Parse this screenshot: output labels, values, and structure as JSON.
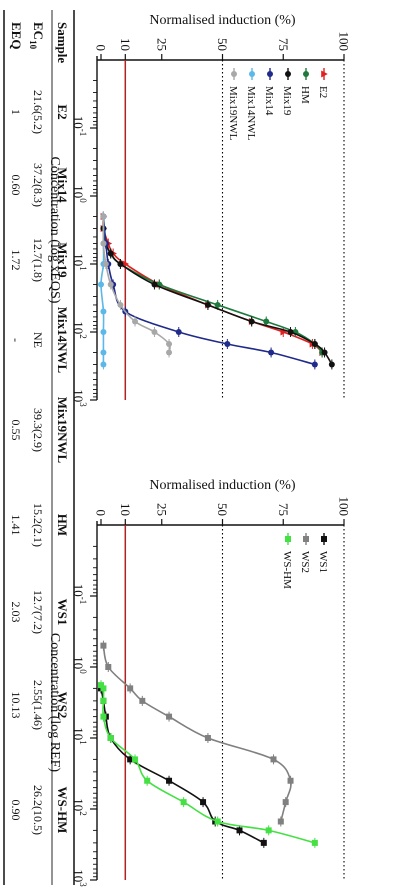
{
  "chart_data": [
    {
      "type": "scatter",
      "title": "",
      "xlabel": "Concentration (log xEQS)",
      "ylabel": "Normalised induction (%)",
      "xscale": "log",
      "xlim": [
        0.01,
        1000
      ],
      "ylim": [
        0,
        100
      ],
      "xtick_labels": [
        {
          "base": "10",
          "exp": "-1"
        },
        {
          "base": "10",
          "exp": "0"
        },
        {
          "base": "10",
          "exp": "1"
        },
        {
          "base": "10",
          "exp": "2"
        },
        {
          "base": "10",
          "exp": "3"
        }
      ],
      "yticks": [
        0,
        10,
        25,
        50,
        75,
        100
      ],
      "ytick_labels": [
        "0",
        "10",
        "25",
        "50",
        "75",
        "100"
      ],
      "reference_lines": [
        {
          "y": 100,
          "style": "dotted",
          "color": "#000000"
        },
        {
          "y": 50,
          "style": "dotted",
          "color": "#000000"
        },
        {
          "y": 10,
          "style": "solid",
          "color": "#b22222"
        }
      ],
      "legend_position": "top-left",
      "series": [
        {
          "name": "E2",
          "color": "#e02020",
          "marker": "triangle",
          "x": [
            2,
            3,
            5,
            7,
            10,
            20,
            40,
            70,
            100,
            150,
            200
          ],
          "y": [
            1,
            1,
            3,
            5,
            10,
            24,
            44,
            62,
            75,
            87,
            91
          ]
        },
        {
          "name": "HM",
          "color": "#1e7a3c",
          "marker": "circle",
          "x": [
            2,
            3,
            5,
            7,
            10,
            20,
            40,
            70,
            100,
            150,
            200
          ],
          "y": [
            1,
            1,
            2,
            4,
            8,
            24,
            48,
            68,
            80,
            88,
            91
          ]
        },
        {
          "name": "Mix19",
          "color": "#111111",
          "marker": "circle",
          "x": [
            2,
            3,
            5,
            7,
            10,
            20,
            40,
            70,
            100,
            150,
            200,
            300
          ],
          "y": [
            1,
            1,
            2,
            4,
            8,
            22,
            44,
            62,
            78,
            88,
            92,
            95
          ]
        },
        {
          "name": "Mix14",
          "color": "#1f2a8a",
          "marker": "circle",
          "x": [
            2,
            5,
            10,
            20,
            50,
            100,
            150,
            200,
            300
          ],
          "y": [
            1,
            2,
            3,
            5,
            10,
            32,
            52,
            70,
            88
          ]
        },
        {
          "name": "Mix14NWL",
          "color": "#5bb8e8",
          "marker": "circle",
          "x": [
            2,
            5,
            10,
            20,
            50,
            100,
            200,
            300
          ],
          "y": [
            1,
            1,
            1,
            0,
            1,
            1,
            1,
            1
          ]
        },
        {
          "name": "Mix19NWL",
          "color": "#a8a8a8",
          "marker": "circle",
          "x": [
            2,
            5,
            10,
            20,
            40,
            70,
            100,
            150,
            200
          ],
          "y": [
            1,
            1,
            2,
            4,
            8,
            14,
            22,
            28,
            28
          ]
        }
      ]
    },
    {
      "type": "scatter",
      "title": "",
      "xlabel": "Concentration (log REF)",
      "ylabel": "Normalised induction (%)",
      "xscale": "log",
      "xlim": [
        0.01,
        1000
      ],
      "ylim": [
        0,
        100
      ],
      "xtick_labels": [
        {
          "base": "10",
          "exp": "-1"
        },
        {
          "base": "10",
          "exp": "0"
        },
        {
          "base": "10",
          "exp": "1"
        },
        {
          "base": "10",
          "exp": "2"
        },
        {
          "base": "10",
          "exp": "3"
        }
      ],
      "yticks": [
        0,
        10,
        25,
        50,
        75,
        100
      ],
      "ytick_labels": [
        "0",
        "10",
        "25",
        "50",
        "75",
        "100"
      ],
      "reference_lines": [
        {
          "y": 100,
          "style": "dotted",
          "color": "#000000"
        },
        {
          "y": 50,
          "style": "dotted",
          "color": "#000000"
        },
        {
          "y": 10,
          "style": "solid",
          "color": "#b22222"
        }
      ],
      "legend_position": "top-left",
      "series": [
        {
          "name": "WS1",
          "color": "#111111",
          "marker": "square",
          "x": [
            2,
            3,
            5,
            10,
            20,
            40,
            80,
            150,
            200,
            300
          ],
          "y": [
            0,
            1,
            2,
            4,
            12,
            28,
            42,
            47,
            57,
            67
          ]
        },
        {
          "name": "WS2",
          "color": "#808080",
          "marker": "square",
          "x": [
            0.5,
            1,
            2,
            3,
            5,
            10,
            20,
            40,
            80,
            150
          ],
          "y": [
            1,
            3,
            12,
            17,
            28,
            44,
            71,
            78,
            76,
            74
          ]
        },
        {
          "name": "WS-HM",
          "color": "#44e044",
          "marker": "square",
          "x": [
            1.8,
            2,
            3,
            5,
            10,
            20,
            40,
            80,
            150,
            200,
            300
          ],
          "y": [
            0,
            1,
            1,
            1,
            4,
            14,
            19,
            34,
            48,
            69,
            88
          ]
        }
      ]
    }
  ],
  "table": {
    "columns": [
      "Sample",
      "E2",
      "Mix14",
      "Mix19",
      "Mix14NWL",
      "Mix19NWL",
      "HM",
      "WS1",
      "WS2",
      "WS-HM"
    ],
    "rows": [
      {
        "label": "EC",
        "label_sub": "10",
        "values": [
          "21.6(5.2)",
          "37.2(8.3)",
          "12.7(1.8)",
          "NE",
          "39.3(2.9)",
          "15.2(2.1)",
          "12.7(7.2)",
          "2.55(1.46)",
          "26.2(10.5)"
        ]
      },
      {
        "label": "EEQ",
        "label_sub": "",
        "values": [
          "1",
          "0.60",
          "1.72",
          "-",
          "0.55",
          "1.41",
          "2.03",
          "10.13",
          "0.90"
        ]
      }
    ]
  }
}
